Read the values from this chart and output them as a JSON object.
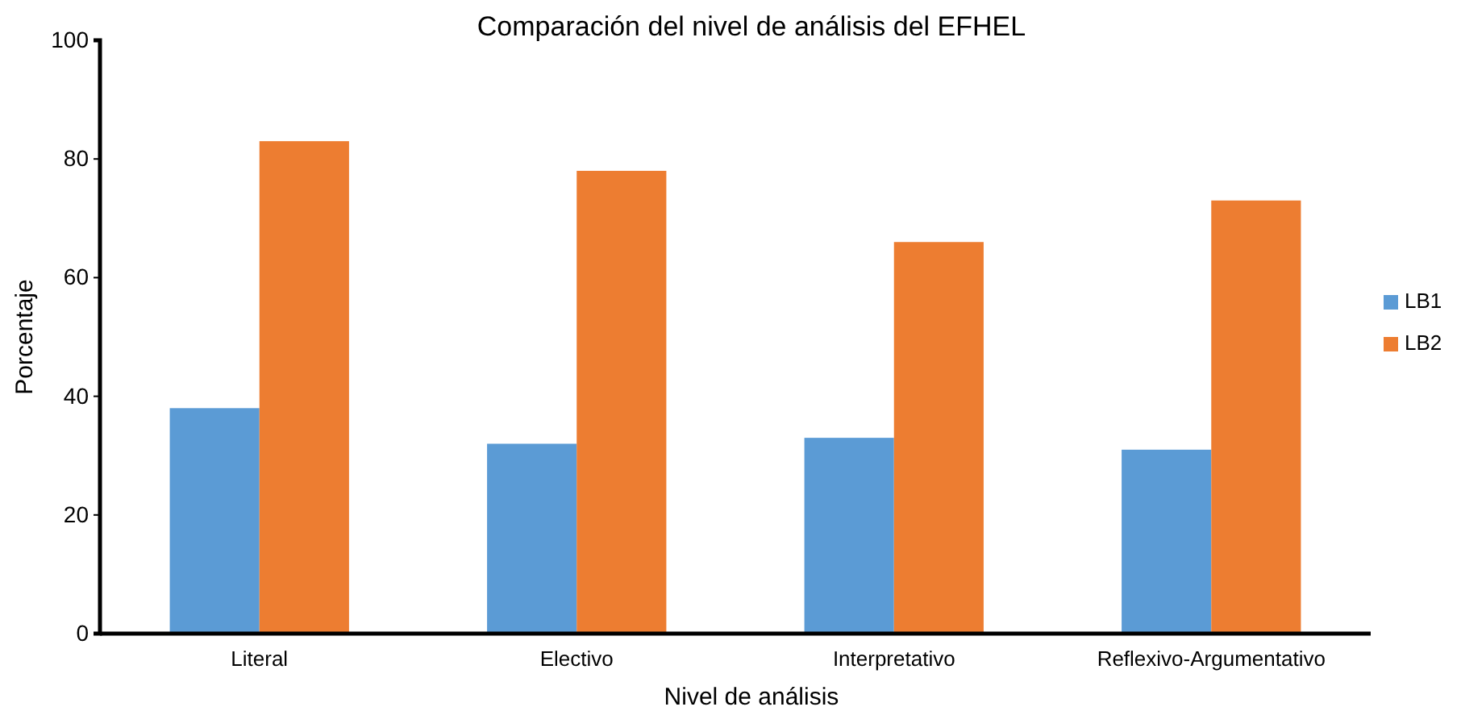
{
  "chart_data": {
    "type": "bar",
    "title": "Comparación del nivel de análisis del EFHEL",
    "xlabel": "Nivel de análisis",
    "ylabel": "Porcentaje",
    "categories": [
      "Literal",
      "Electivo",
      "Interpretativo",
      "Reflexivo-Argumentativo"
    ],
    "series": [
      {
        "name": "LB1",
        "color": "#5b9bd5",
        "values": [
          38,
          32,
          33,
          31
        ]
      },
      {
        "name": "LB2",
        "color": "#ed7d31",
        "values": [
          83,
          78,
          66,
          73
        ]
      }
    ],
    "ylim": [
      0,
      100
    ],
    "yticks": [
      0,
      20,
      40,
      60,
      80,
      100
    ],
    "grid": false,
    "legend": "right"
  }
}
